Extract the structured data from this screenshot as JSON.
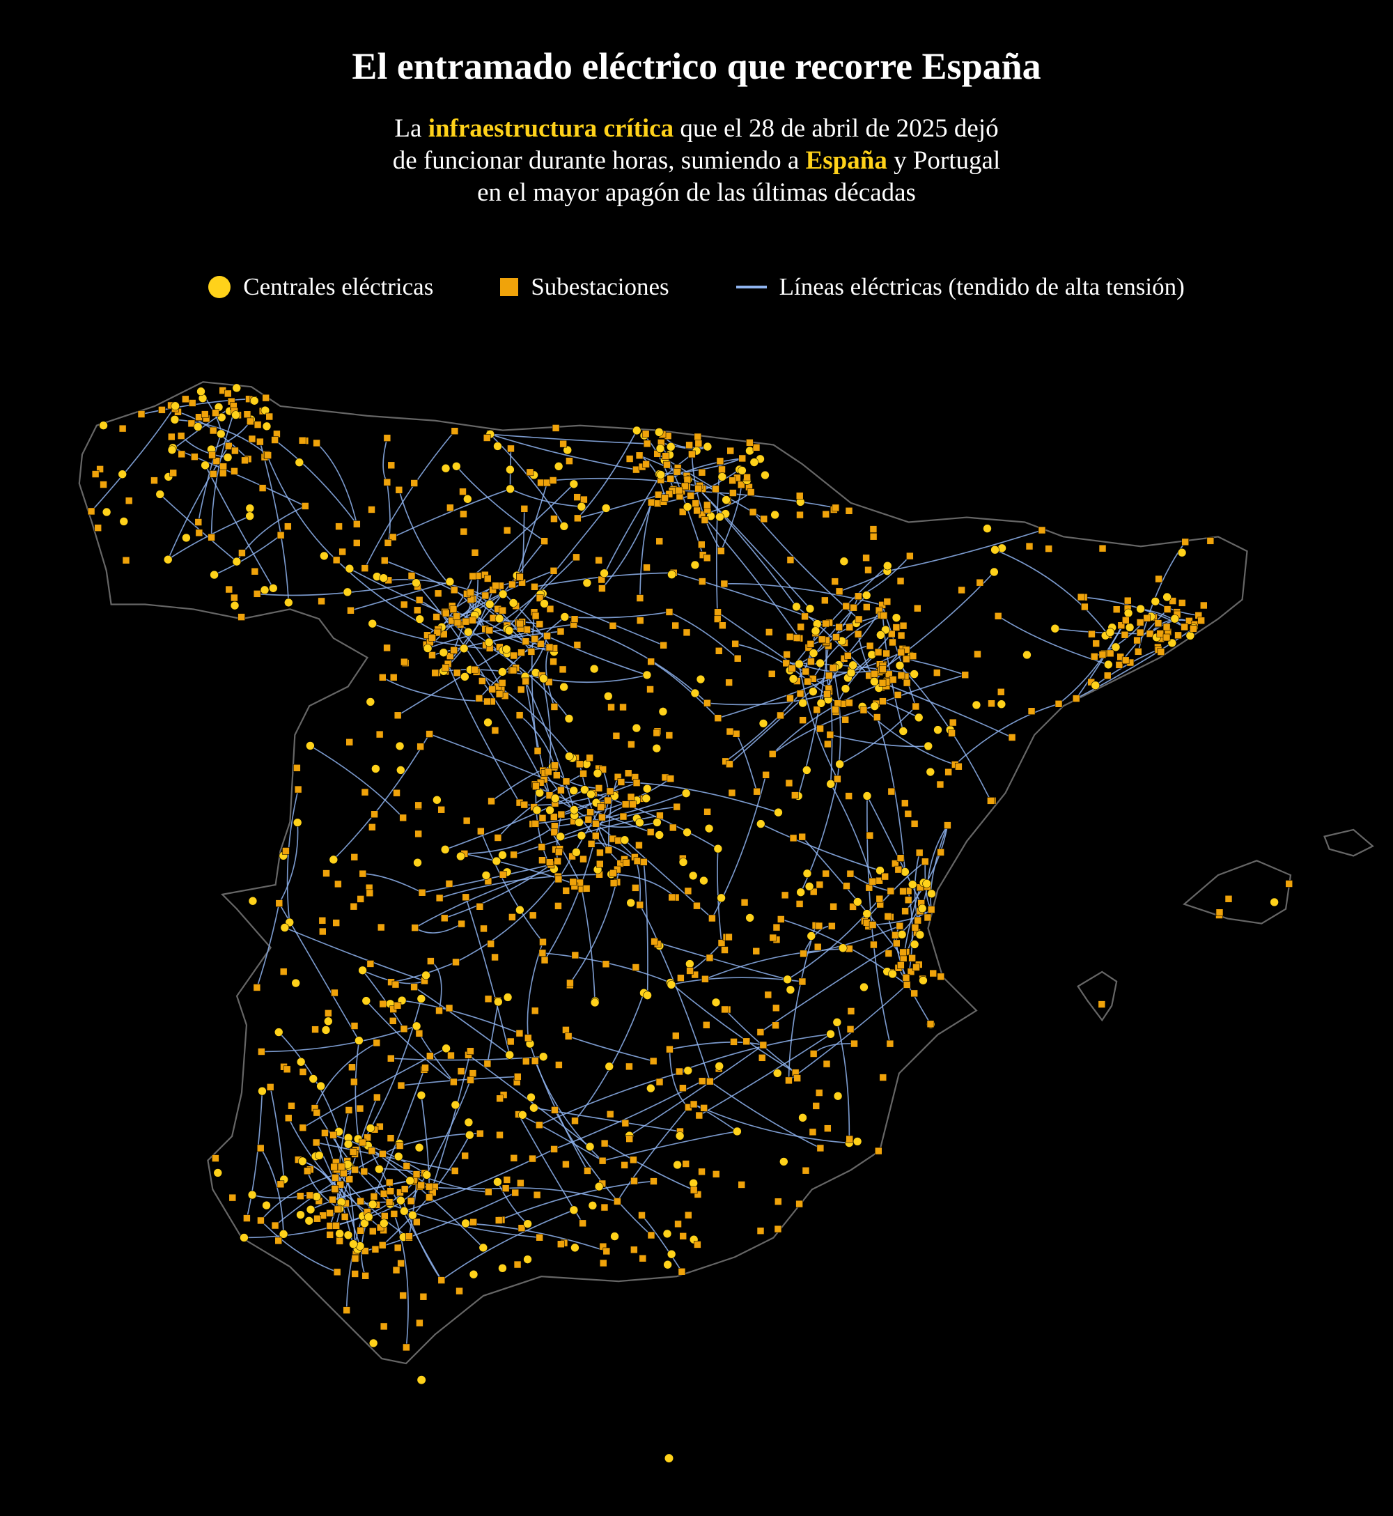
{
  "header": {
    "title": "El entramado eléctrico que recorre España",
    "subtitle": [
      [
        {
          "text": "La "
        },
        {
          "text": "infraestructura crítica",
          "highlight": true
        },
        {
          "text": " que el 28 de abril de 2025 dejó"
        }
      ],
      [
        {
          "text": "de funcionar durante horas, sumiendo a "
        },
        {
          "text": "España",
          "highlight": true
        },
        {
          "text": " y Portugal"
        }
      ],
      [
        {
          "text": "en el mayor apagón de las últimas décadas"
        }
      ]
    ],
    "highlight_color": "#ffd21a"
  },
  "legend": [
    {
      "label": "Centrales eléctricas",
      "symbol": "circle",
      "color": "#ffd21a"
    },
    {
      "label": "Subestaciones",
      "symbol": "square",
      "color": "#f0a30a"
    },
    {
      "label": "Líneas eléctricas (tendido de alta tensión)",
      "symbol": "line",
      "color": "#8fb4f0"
    }
  ]
}
